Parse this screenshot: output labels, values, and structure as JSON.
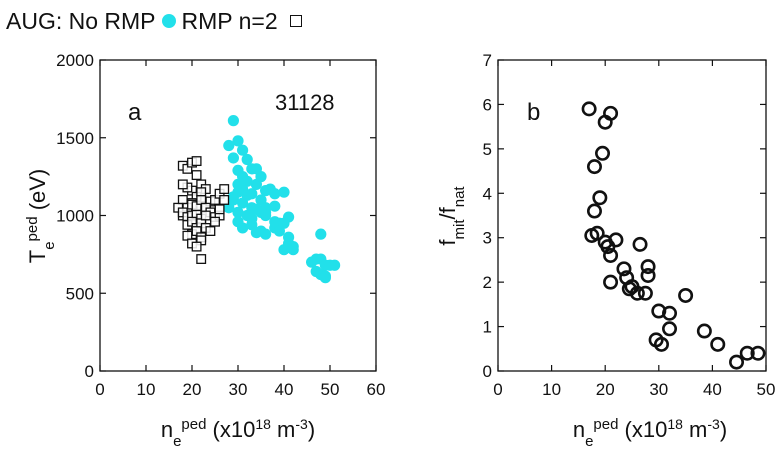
{
  "legend": {
    "prefix": "AUG: No RMP",
    "second": "RMP n=2",
    "no_rmp_color": "#22e0ea"
  },
  "chart_data": [
    {
      "type": "scatter",
      "panel": "a",
      "annotation": "31128",
      "xlabel": "n_e^ped (x10^18 m^-3)",
      "ylabel": "T_e^ped (eV)",
      "xlim": [
        0,
        60
      ],
      "ylim": [
        0,
        2000
      ],
      "xticks": [
        0,
        10,
        20,
        30,
        40,
        50,
        60
      ],
      "yticks": [
        0,
        500,
        1000,
        1500,
        2000
      ],
      "grid": false,
      "legend_position": "top-left (above plot)",
      "series": [
        {
          "name": "No RMP",
          "marker": "filled-circle",
          "color": "#22e0ea",
          "x": [
            29,
            28,
            30,
            29,
            31,
            32,
            30,
            31,
            33,
            32,
            30,
            31,
            29,
            28,
            32,
            33,
            34,
            31,
            30,
            33,
            35,
            36,
            35,
            34,
            37,
            38,
            38,
            36,
            36,
            40,
            30,
            31,
            33,
            34,
            35,
            36,
            38,
            39,
            41,
            42,
            40,
            41,
            42,
            32,
            33,
            34,
            36,
            35,
            38,
            39,
            41,
            40,
            46,
            47,
            48,
            49,
            50,
            47,
            48,
            49,
            51,
            48,
            49,
            29,
            30
          ],
          "y": [
            1610,
            1450,
            1480,
            1370,
            1420,
            1360,
            1290,
            1250,
            1300,
            1220,
            1200,
            1170,
            1120,
            1050,
            1130,
            1140,
            1200,
            1080,
            1020,
            1050,
            1100,
            1160,
            1250,
            1300,
            1170,
            1140,
            1060,
            1020,
            1050,
            1150,
            960,
            920,
            940,
            890,
            900,
            880,
            920,
            950,
            860,
            800,
            780,
            820,
            780,
            1000,
            980,
            1040,
            1000,
            1020,
            960,
            900,
            990,
            950,
            700,
            720,
            720,
            680,
            680,
            640,
            620,
            610,
            680,
            880,
            600,
            1100,
            1150
          ]
        },
        {
          "name": "RMP n=2",
          "marker": "open-square",
          "color": "#111111",
          "x": [
            18,
            19,
            20,
            21,
            22,
            20,
            19,
            18,
            21,
            23,
            22,
            20,
            19,
            18,
            21,
            22,
            23,
            17,
            18,
            19,
            20,
            21,
            22,
            23,
            24,
            25,
            26,
            27,
            19,
            20,
            21,
            22,
            20,
            21,
            22,
            23,
            24,
            20,
            21,
            22,
            23,
            24,
            25,
            26,
            19,
            20,
            22,
            18,
            21,
            23,
            22,
            21,
            26,
            27,
            25
          ],
          "y": [
            1320,
            1300,
            1340,
            1350,
            1200,
            1160,
            1180,
            1100,
            1120,
            1170,
            1150,
            1080,
            1050,
            1000,
            1020,
            1060,
            1030,
            1050,
            1020,
            990,
            1000,
            1010,
            980,
            1050,
            1090,
            1100,
            1140,
            1170,
            940,
            960,
            920,
            950,
            880,
            900,
            860,
            920,
            900,
            1070,
            1060,
            1100,
            1050,
            1020,
            990,
            1000,
            870,
            820,
            840,
            1200,
            1260,
            1000,
            720,
            800,
            1040,
            1100,
            960
          ]
        }
      ]
    },
    {
      "type": "scatter",
      "panel": "b",
      "xlabel": "n_e^ped (x10^18 m^-3)",
      "ylabel": "f_mit/f_nat",
      "xlim": [
        0,
        50
      ],
      "ylim": [
        0,
        7
      ],
      "xticks": [
        0,
        10,
        20,
        30,
        40,
        50
      ],
      "yticks": [
        0,
        1,
        2,
        3,
        4,
        5,
        6,
        7
      ],
      "grid": false,
      "series": [
        {
          "name": "",
          "marker": "open-circle",
          "color": "#111111",
          "x": [
            17.0,
            20.0,
            21.0,
            19.5,
            18.0,
            19.0,
            18.0,
            18.5,
            17.5,
            20.0,
            22.0,
            26.5,
            20.5,
            21.0,
            23.5,
            24.0,
            28.0,
            28.0,
            21.0,
            24.5,
            25.0,
            26.0,
            27.5,
            35.0,
            30.0,
            32.0,
            32.0,
            29.5,
            30.5,
            38.5,
            41.0,
            44.5,
            46.5,
            48.5
          ],
          "y": [
            5.9,
            5.6,
            5.8,
            4.9,
            4.6,
            3.9,
            3.6,
            3.1,
            3.05,
            2.9,
            2.95,
            2.85,
            2.8,
            2.6,
            2.3,
            2.1,
            2.35,
            2.15,
            2.0,
            1.85,
            1.9,
            1.75,
            1.75,
            1.7,
            1.35,
            1.3,
            0.95,
            0.7,
            0.6,
            0.9,
            0.6,
            0.2,
            0.4,
            0.4
          ]
        }
      ]
    }
  ]
}
